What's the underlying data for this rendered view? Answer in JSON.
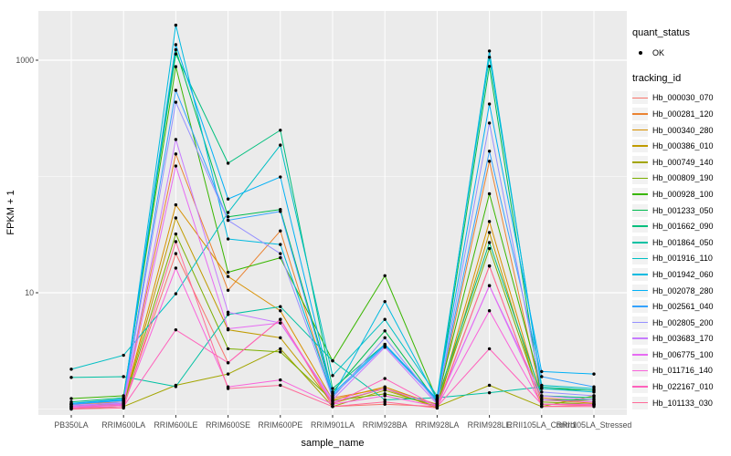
{
  "figure": {
    "background": "#FFFFFF",
    "panel_background": "#EBEBEB",
    "grid_color": "#FFFFFF",
    "tick_color": "#333333",
    "axis_text_color": "#4D4D4D",
    "point_color": "#000000"
  },
  "chart_data": {
    "type": "line",
    "title": "",
    "xlabel": "sample_name",
    "ylabel": "FPKM + 1",
    "y_scale": "log10",
    "ylim": [
      0.9,
      2650
    ],
    "y_ticks": [
      10,
      1000
    ],
    "y_minor_ticks": [
      1,
      100
    ],
    "grid": true,
    "legend_position": "right",
    "point_marker": "filled-circle-black",
    "categories": [
      "PB350LA",
      "RRIM600LA",
      "RRIM600LE",
      "RRIM600SE",
      "RRIM600PE",
      "RRIM901LA",
      "RRIM928BA",
      "RRIM928LA",
      "RRIM928LE",
      "RRII105LA_Control",
      "RRII105LA_Stressed"
    ],
    "series": [
      {
        "name": "Hb_000030_070",
        "color": "#F8766D",
        "values": [
          1.05,
          1.08,
          21.7,
          2.5,
          5.9,
          1.05,
          1.1,
          1.05,
          17,
          1.05,
          1.08
        ]
      },
      {
        "name": "Hb_000281_120",
        "color": "#EA8331",
        "values": [
          1.1,
          1.15,
          156,
          10.5,
          34,
          1.25,
          1.5,
          1.1,
          135,
          1.25,
          1.15
        ]
      },
      {
        "name": "Hb_000340_280",
        "color": "#D89000",
        "values": [
          1.05,
          1.12,
          57,
          13.8,
          7,
          1.2,
          1.55,
          1.08,
          41,
          1.2,
          1.12
        ]
      },
      {
        "name": "Hb_000386_010",
        "color": "#C09B00",
        "values": [
          1.02,
          1.1,
          44,
          4.8,
          4.1,
          1.12,
          1.5,
          1.02,
          33,
          1.1,
          1.1
        ]
      },
      {
        "name": "Hb_000749_140",
        "color": "#A3A500",
        "values": [
          1.0,
          1.05,
          1.6,
          2.0,
          3.3,
          1.05,
          1.45,
          1.05,
          1.6,
          1.05,
          1.3
        ]
      },
      {
        "name": "Hb_000809_190",
        "color": "#7CAE00",
        "values": [
          1.08,
          1.1,
          32,
          3.3,
          3.1,
          1.18,
          1.35,
          1.1,
          24,
          1.15,
          1.1
        ]
      },
      {
        "name": "Hb_000928_100",
        "color": "#39B600",
        "values": [
          1.23,
          1.3,
          880,
          15,
          20,
          2.6,
          14,
          1.2,
          71,
          1.5,
          1.45
        ]
      },
      {
        "name": "Hb_001233_050",
        "color": "#00BB4E",
        "values": [
          1.1,
          1.2,
          1230,
          45,
          52,
          1.4,
          4.7,
          1.15,
          885,
          1.2,
          1.2
        ]
      },
      {
        "name": "Hb_001662_090",
        "color": "#00BF7D",
        "values": [
          1.15,
          1.25,
          1130,
          130,
          250,
          1.5,
          3.6,
          1.2,
          27,
          1.3,
          1.25
        ]
      },
      {
        "name": "Hb_001864_050",
        "color": "#00C1A3",
        "values": [
          1.87,
          1.9,
          1.56,
          6.5,
          7.6,
          2.6,
          1.2,
          1.25,
          1.38,
          1.55,
          1.45
        ]
      },
      {
        "name": "Hb_001916_110",
        "color": "#00BFC4",
        "values": [
          2.2,
          2.9,
          9.8,
          49,
          186,
          1.94,
          5.9,
          1.3,
          1060,
          1.6,
          1.5
        ]
      },
      {
        "name": "Hb_001942_060",
        "color": "#00BAE0",
        "values": [
          1.1,
          1.2,
          2000,
          29,
          26,
          1.3,
          8.4,
          1.2,
          1200,
          1.5,
          1.4
        ]
      },
      {
        "name": "Hb_002078_280",
        "color": "#00B0F6",
        "values": [
          1.12,
          1.22,
          1360,
          64,
          99,
          1.35,
          3.6,
          1.22,
          420,
          2.1,
          2.0
        ]
      },
      {
        "name": "Hb_002561_040",
        "color": "#35A2FF",
        "values": [
          1.1,
          1.18,
          550,
          42,
          50,
          1.3,
          3.5,
          1.18,
          165,
          1.9,
          1.55
        ]
      },
      {
        "name": "Hb_002805_200",
        "color": "#9590FF",
        "values": [
          1.05,
          1.15,
          435,
          42,
          21.7,
          1.25,
          4.1,
          1.12,
          288,
          1.4,
          1.3
        ]
      },
      {
        "name": "Hb_003683_170",
        "color": "#C77CFF",
        "values": [
          1.08,
          1.12,
          208,
          6.8,
          5.5,
          1.2,
          3.4,
          1.1,
          11.5,
          1.3,
          1.2
        ]
      },
      {
        "name": "Hb_006775_100",
        "color": "#E76BF3",
        "values": [
          1.05,
          1.1,
          123,
          4.9,
          5.5,
          1.15,
          1.5,
          1.08,
          11.5,
          1.2,
          1.15
        ]
      },
      {
        "name": "Hb_011716_140",
        "color": "#FA62DB",
        "values": [
          1.03,
          1.08,
          16.3,
          1.55,
          1.78,
          1.1,
          1.3,
          1.05,
          7,
          1.1,
          1.1
        ]
      },
      {
        "name": "Hb_022167_010",
        "color": "#FF62BC",
        "values": [
          1.02,
          1.05,
          4.8,
          2.5,
          5.9,
          1.1,
          1.83,
          1.05,
          3.3,
          1.1,
          1.08
        ]
      },
      {
        "name": "Hb_101133_030",
        "color": "#FF6A98",
        "values": [
          1.0,
          1.02,
          27.5,
          1.5,
          1.6,
          1.05,
          1.15,
          1.02,
          17,
          1.05,
          1.05
        ]
      }
    ]
  },
  "legend": {
    "quant_status": {
      "title": "quant_status",
      "items": [
        {
          "label": "OK",
          "symbol": "point-icon"
        }
      ]
    },
    "tracking_id": {
      "title": "tracking_id",
      "items": [
        {
          "label": "Hb_000030_070",
          "color": "#F8766D"
        },
        {
          "label": "Hb_000281_120",
          "color": "#EA8331"
        },
        {
          "label": "Hb_000340_280",
          "color": "#D89000"
        },
        {
          "label": "Hb_000386_010",
          "color": "#C09B00"
        },
        {
          "label": "Hb_000749_140",
          "color": "#A3A500"
        },
        {
          "label": "Hb_000809_190",
          "color": "#7CAE00"
        },
        {
          "label": "Hb_000928_100",
          "color": "#39B600"
        },
        {
          "label": "Hb_001233_050",
          "color": "#00BB4E"
        },
        {
          "label": "Hb_001662_090",
          "color": "#00BF7D"
        },
        {
          "label": "Hb_001864_050",
          "color": "#00C1A3"
        },
        {
          "label": "Hb_001916_110",
          "color": "#00BFC4"
        },
        {
          "label": "Hb_001942_060",
          "color": "#00BAE0"
        },
        {
          "label": "Hb_002078_280",
          "color": "#00B0F6"
        },
        {
          "label": "Hb_002561_040",
          "color": "#35A2FF"
        },
        {
          "label": "Hb_002805_200",
          "color": "#9590FF"
        },
        {
          "label": "Hb_003683_170",
          "color": "#C77CFF"
        },
        {
          "label": "Hb_006775_100",
          "color": "#E76BF3"
        },
        {
          "label": "Hb_011716_140",
          "color": "#FA62DB"
        },
        {
          "label": "Hb_022167_010",
          "color": "#FF62BC"
        },
        {
          "label": "Hb_101133_030",
          "color": "#FF6A98"
        }
      ]
    }
  }
}
